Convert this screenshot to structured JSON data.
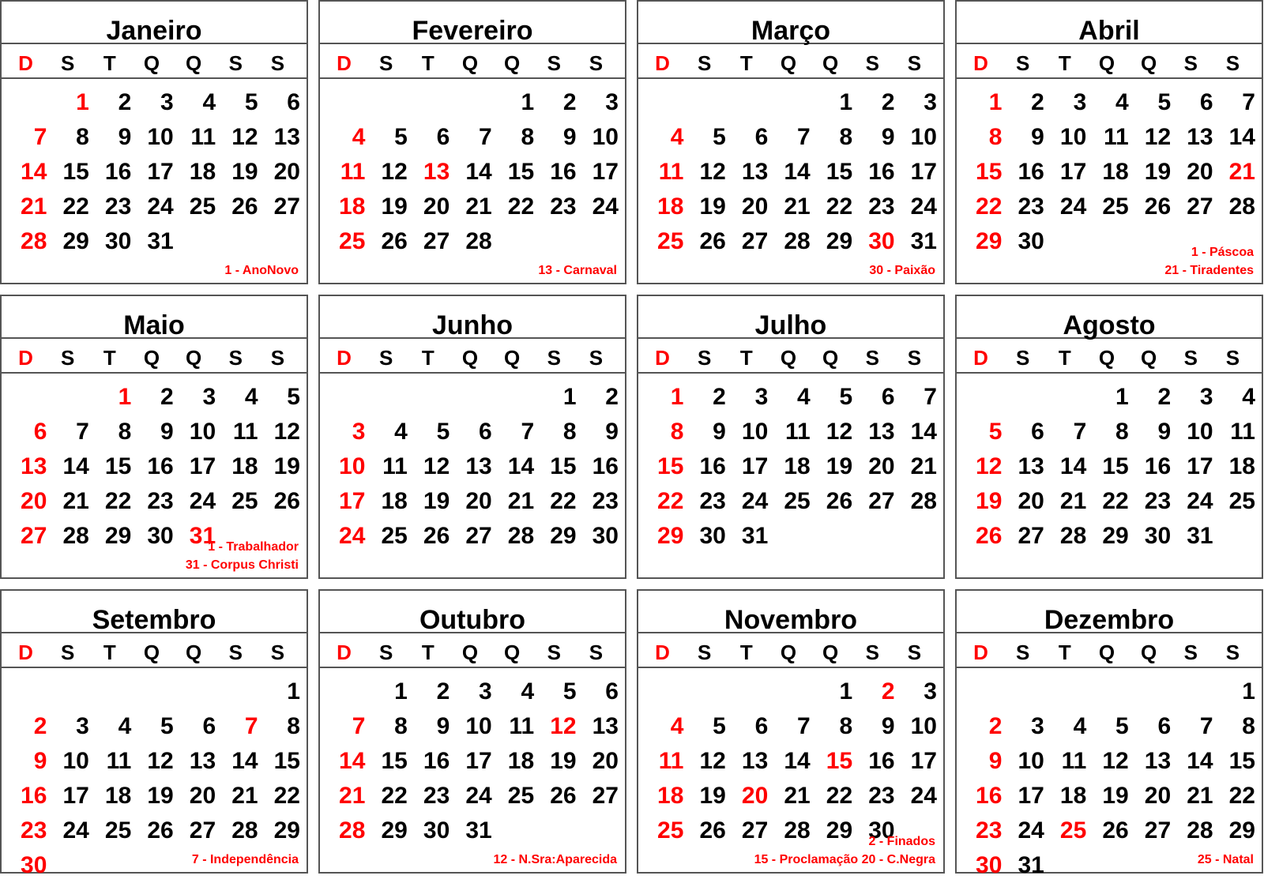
{
  "weekdays": [
    "D",
    "S",
    "T",
    "Q",
    "Q",
    "S",
    "S"
  ],
  "colors": {
    "holiday": "#ff0000",
    "text": "#000000",
    "border": "#555555"
  },
  "months": [
    {
      "name": "Janeiro",
      "start": 1,
      "days": 31,
      "holidays": [
        1
      ],
      "notes": [
        "1 - AnoNovo"
      ]
    },
    {
      "name": "Fevereiro",
      "start": 4,
      "days": 28,
      "holidays": [
        13
      ],
      "notes": [
        "13 - Carnaval"
      ]
    },
    {
      "name": "Março",
      "start": 4,
      "days": 31,
      "holidays": [
        30
      ],
      "notes": [
        "30 - Paixão"
      ]
    },
    {
      "name": "Abril",
      "start": 0,
      "days": 30,
      "holidays": [
        1,
        21
      ],
      "notes": [
        "1 - Páscoa",
        "21 - Tiradentes"
      ]
    },
    {
      "name": "Maio",
      "start": 2,
      "days": 31,
      "holidays": [
        1,
        31
      ],
      "notes": [
        "1 - Trabalhador",
        "31 - Corpus Christi"
      ]
    },
    {
      "name": "Junho",
      "start": 5,
      "days": 30,
      "holidays": [],
      "notes": []
    },
    {
      "name": "Julho",
      "start": 0,
      "days": 31,
      "holidays": [],
      "notes": []
    },
    {
      "name": "Agosto",
      "start": 3,
      "days": 31,
      "holidays": [],
      "notes": []
    },
    {
      "name": "Setembro",
      "start": 6,
      "days": 30,
      "holidays": [
        7
      ],
      "notes": [
        "7 - Independência"
      ]
    },
    {
      "name": "Outubro",
      "start": 1,
      "days": 31,
      "holidays": [
        12
      ],
      "notes": [
        "12 - N.Sra:Aparecida"
      ]
    },
    {
      "name": "Novembro",
      "start": 4,
      "days": 30,
      "holidays": [
        2,
        15,
        20
      ],
      "notes": [
        "2 - Finados",
        "15 - Proclamação 20 - C.Negra"
      ]
    },
    {
      "name": "Dezembro",
      "start": 6,
      "days": 31,
      "holidays": [
        25
      ],
      "notes": [
        "25 - Natal"
      ]
    }
  ]
}
